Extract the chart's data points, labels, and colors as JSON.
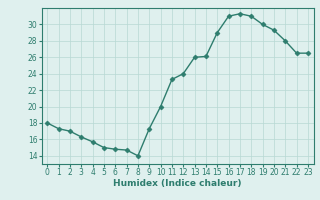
{
  "x": [
    0,
    1,
    2,
    3,
    4,
    5,
    6,
    7,
    8,
    9,
    10,
    11,
    12,
    13,
    14,
    15,
    16,
    17,
    18,
    19,
    20,
    21,
    22,
    23
  ],
  "y": [
    18.0,
    17.3,
    17.0,
    16.3,
    15.7,
    15.0,
    14.8,
    14.7,
    14.0,
    17.3,
    20.0,
    23.3,
    24.0,
    26.0,
    26.1,
    29.0,
    31.0,
    31.3,
    31.0,
    30.0,
    29.3,
    28.0,
    26.5,
    26.5
  ],
  "line_color": "#2e7d6e",
  "marker": "D",
  "markersize": 2.5,
  "linewidth": 1.0,
  "bg_color": "#dff0ee",
  "grid_color": "#b8d8d4",
  "xlabel": "Humidex (Indice chaleur)",
  "ylim": [
    13,
    32
  ],
  "xlim": [
    -0.5,
    23.5
  ],
  "yticks": [
    14,
    16,
    18,
    20,
    22,
    24,
    26,
    28,
    30
  ],
  "xticks": [
    0,
    1,
    2,
    3,
    4,
    5,
    6,
    7,
    8,
    9,
    10,
    11,
    12,
    13,
    14,
    15,
    16,
    17,
    18,
    19,
    20,
    21,
    22,
    23
  ],
  "xlabel_fontsize": 6.5,
  "tick_fontsize": 5.5
}
